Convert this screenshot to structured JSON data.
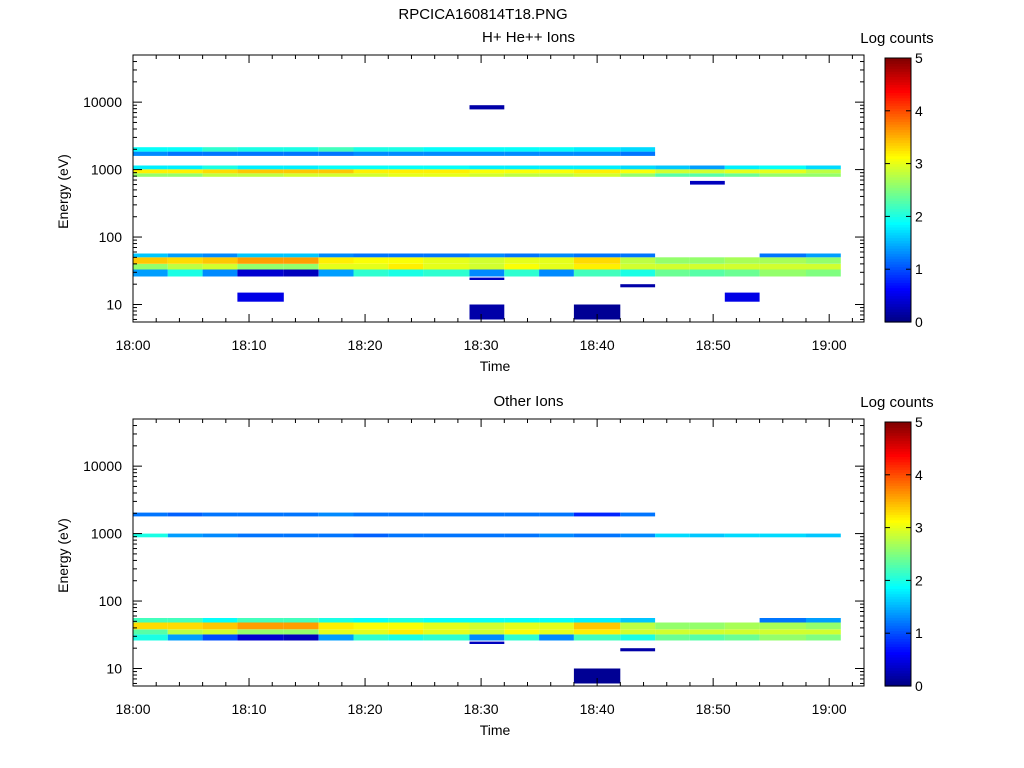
{
  "figure_title": "RPCICA160814T18.PNG",
  "chart_data": [
    {
      "type": "heatmap",
      "title": "H+ He++ Ions",
      "xlabel": "Time",
      "ylabel": "Energy (eV)",
      "colorbar_label": "Log counts",
      "colorbar_ticks": [
        "0",
        "1",
        "2",
        "3",
        "4",
        "5"
      ],
      "colorbar_range": [
        0,
        5
      ],
      "x_ticks": [
        "18:00",
        "18:10",
        "18:20",
        "18:30",
        "18:40",
        "18:50",
        "19:00"
      ],
      "y_ticks": [
        "10",
        "100",
        "1000",
        "10000"
      ],
      "y_scale": "log",
      "ylim": [
        5.5,
        50000
      ],
      "xlim": [
        "18:00",
        "19:03"
      ],
      "time_bins": [
        "18:00",
        "18:03",
        "18:06",
        "18:09",
        "18:13",
        "18:16",
        "18:19",
        "18:22",
        "18:25",
        "18:29",
        "18:32",
        "18:35",
        "18:38",
        "18:42",
        "18:45",
        "18:48",
        "18:51",
        "18:54",
        "18:58",
        "19:01"
      ],
      "bands": [
        {
          "e_lo": 26,
          "e_hi": 33,
          "values": [
            1.4,
            2.0,
            1.3,
            0.4,
            0.3,
            1.4,
            2.1,
            2.0,
            2.1,
            1.3,
            2.1,
            1.3,
            2.2,
            2.0,
            2.4,
            2.3,
            2.4,
            2.6,
            2.5
          ]
        },
        {
          "e_lo": 33,
          "e_hi": 40,
          "values": [
            2.6,
            2.8,
            2.9,
            2.6,
            2.6,
            3.0,
            3.0,
            3.2,
            3.0,
            2.9,
            3.1,
            3.0,
            3.2,
            2.9,
            2.9,
            2.9,
            2.9,
            2.9,
            2.9
          ]
        },
        {
          "e_lo": 40,
          "e_hi": 50,
          "values": [
            3.4,
            3.3,
            3.4,
            3.6,
            3.6,
            3.2,
            3.1,
            3.1,
            3.0,
            2.9,
            3.0,
            3.0,
            3.3,
            2.8,
            2.6,
            2.6,
            2.7,
            2.7,
            2.6
          ]
        },
        {
          "e_lo": 50,
          "e_hi": 57,
          "values": [
            1.6,
            1.4,
            1.3,
            1.6,
            1.6,
            1.3,
            1.2,
            1.2,
            1.2,
            1.3,
            1.2,
            1.3,
            1.2,
            1.2,
            0,
            0,
            0,
            1.2,
            1.4
          ]
        },
        {
          "e_lo": 780,
          "e_hi": 880,
          "values": [
            2.6,
            2.6,
            2.8,
            2.8,
            2.9,
            2.9,
            2.9,
            3.0,
            3.0,
            2.9,
            2.8,
            2.8,
            2.9,
            2.6,
            2.3,
            2.3,
            2.4,
            2.6,
            2.6
          ]
        },
        {
          "e_lo": 880,
          "e_hi": 1010,
          "values": [
            3.2,
            3.2,
            3.3,
            3.4,
            3.4,
            3.4,
            3.2,
            3.2,
            3.2,
            3.1,
            3.1,
            3.1,
            3.2,
            3.1,
            2.9,
            2.9,
            3.0,
            3.0,
            2.8
          ]
        },
        {
          "e_lo": 1010,
          "e_hi": 1150,
          "values": [
            1.8,
            1.8,
            2.0,
            1.8,
            1.8,
            1.9,
            1.9,
            1.9,
            1.9,
            1.8,
            1.8,
            1.8,
            1.8,
            1.7,
            1.6,
            1.4,
            1.8,
            1.9,
            1.7
          ]
        },
        {
          "e_lo": 1600,
          "e_hi": 1850,
          "values": [
            1.3,
            1.2,
            1.2,
            1.2,
            1.2,
            1.2,
            1.3,
            1.3,
            1.3,
            1.3,
            1.3,
            1.3,
            1.3,
            1.2,
            0,
            0,
            0,
            0,
            0
          ]
        },
        {
          "e_lo": 1850,
          "e_hi": 2150,
          "values": [
            1.9,
            1.9,
            2.1,
            2.0,
            2.0,
            2.2,
            2.0,
            2.0,
            1.9,
            1.9,
            1.9,
            1.9,
            1.8,
            1.7,
            0,
            0,
            0,
            0,
            0
          ]
        }
      ],
      "sparse_blocks": [
        {
          "time": "18:10",
          "e_lo": 11,
          "e_hi": 15,
          "value": 0.5
        },
        {
          "time": "18:30",
          "e_lo": 6,
          "e_hi": 10,
          "value": 0.2
        },
        {
          "time": "18:40",
          "e_lo": 6,
          "e_hi": 10,
          "value": 0.1
        },
        {
          "time": "18:53",
          "e_lo": 11,
          "e_hi": 15,
          "value": 0.5
        },
        {
          "time": "18:42",
          "e_lo": 18,
          "e_hi": 20,
          "value": 0.2
        },
        {
          "time": "18:30",
          "e_lo": 23,
          "e_hi": 25,
          "value": 0.3
        },
        {
          "time": "18:48",
          "e_lo": 600,
          "e_hi": 680,
          "value": 0.3
        },
        {
          "time": "18:30",
          "e_lo": 7800,
          "e_hi": 9000,
          "value": 0.2
        }
      ]
    },
    {
      "type": "heatmap",
      "title": "Other Ions",
      "xlabel": "Time",
      "ylabel": "Energy (eV)",
      "colorbar_label": "Log counts",
      "colorbar_ticks": [
        "0",
        "1",
        "2",
        "3",
        "4",
        "5"
      ],
      "colorbar_range": [
        0,
        5
      ],
      "x_ticks": [
        "18:00",
        "18:10",
        "18:20",
        "18:30",
        "18:40",
        "18:50",
        "19:00"
      ],
      "y_ticks": [
        "10",
        "100",
        "1000",
        "10000"
      ],
      "y_scale": "log",
      "ylim": [
        5.5,
        50000
      ],
      "xlim": [
        "18:00",
        "19:03"
      ],
      "time_bins": [
        "18:00",
        "18:03",
        "18:06",
        "18:09",
        "18:13",
        "18:16",
        "18:19",
        "18:22",
        "18:25",
        "18:29",
        "18:32",
        "18:35",
        "18:38",
        "18:42",
        "18:45",
        "18:48",
        "18:51",
        "18:54",
        "18:58",
        "19:01"
      ],
      "bands": [
        {
          "e_lo": 26,
          "e_hi": 32,
          "values": [
            2.0,
            1.4,
            1.0,
            0.4,
            0.3,
            1.4,
            2.1,
            2.0,
            2.1,
            1.3,
            2.1,
            1.3,
            2.2,
            2.0,
            2.4,
            2.3,
            2.4,
            2.6,
            2.5
          ]
        },
        {
          "e_lo": 32,
          "e_hi": 38,
          "values": [
            2.3,
            2.8,
            2.9,
            2.6,
            2.6,
            3.0,
            3.0,
            3.2,
            3.0,
            2.9,
            3.1,
            3.0,
            3.2,
            2.9,
            2.9,
            2.9,
            2.9,
            2.9,
            2.9
          ]
        },
        {
          "e_lo": 38,
          "e_hi": 48,
          "values": [
            3.3,
            3.3,
            3.4,
            3.6,
            3.6,
            3.2,
            3.1,
            3.1,
            3.0,
            2.9,
            3.0,
            3.0,
            3.4,
            2.8,
            2.6,
            2.6,
            2.7,
            2.7,
            2.6
          ]
        },
        {
          "e_lo": 48,
          "e_hi": 56,
          "values": [
            2.2,
            2.2,
            1.9,
            2.2,
            2.2,
            2.0,
            1.9,
            2.0,
            1.9,
            1.9,
            1.9,
            1.9,
            1.8,
            1.6,
            0,
            0,
            0,
            1.2,
            1.4
          ]
        },
        {
          "e_lo": 880,
          "e_hi": 1000,
          "values": [
            2.0,
            1.4,
            1.3,
            1.2,
            1.2,
            1.2,
            1.1,
            1.2,
            1.2,
            1.2,
            1.2,
            1.3,
            1.2,
            1.3,
            1.7,
            1.6,
            1.7,
            1.7,
            1.6
          ]
        },
        {
          "e_lo": 1800,
          "e_hi": 2050,
          "values": [
            1.2,
            1.1,
            1.2,
            1.2,
            1.2,
            1.3,
            1.2,
            1.2,
            1.2,
            1.2,
            1.2,
            1.2,
            0.8,
            1.2,
            0,
            0,
            0,
            0,
            0
          ]
        }
      ],
      "sparse_blocks": [
        {
          "time": "18:40",
          "e_lo": 6,
          "e_hi": 10,
          "value": 0.1
        },
        {
          "time": "18:42",
          "e_lo": 18,
          "e_hi": 20,
          "value": 0.2
        },
        {
          "time": "18:30",
          "e_lo": 23,
          "e_hi": 25,
          "value": 0.3
        }
      ]
    }
  ]
}
